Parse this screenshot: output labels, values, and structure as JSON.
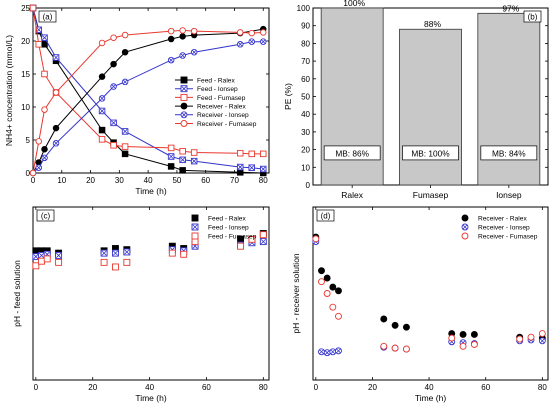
{
  "chart_data": [
    {
      "id": "a",
      "panel_label": "(a)",
      "type": "line",
      "xlabel": "Time (h)",
      "ylabel": "NH4+ concentration (mmol/L)",
      "xlim": [
        0,
        82
      ],
      "ylim": [
        0,
        25
      ],
      "xticks": [
        0,
        10,
        20,
        30,
        40,
        50,
        60,
        70,
        80
      ],
      "yticks": [
        0,
        5,
        10,
        15,
        20,
        25
      ],
      "legend_position": "center-right",
      "series": [
        {
          "name": "Feed - Ralex",
          "color": "#000000",
          "marker": "square-filled",
          "x": [
            0,
            2,
            4,
            8,
            24,
            28,
            32,
            48,
            52,
            72,
            80
          ],
          "y": [
            25,
            21.5,
            19.5,
            17.0,
            6.5,
            4.6,
            2.9,
            1.0,
            0.4,
            0.1,
            0.0
          ]
        },
        {
          "name": "Feed - Ionsep",
          "color": "#3333cc",
          "marker": "square-x",
          "x": [
            0,
            2,
            4,
            8,
            24,
            28,
            32,
            48,
            52,
            56,
            72,
            76,
            80
          ],
          "y": [
            25,
            21.7,
            20.5,
            17.5,
            9.4,
            7.6,
            6.3,
            2.5,
            2.0,
            1.8,
            0.9,
            0.8,
            0.6
          ]
        },
        {
          "name": "Feed - Fumasep",
          "color": "#e8382f",
          "marker": "square-open",
          "x": [
            0,
            2,
            4,
            8,
            24,
            28,
            32,
            48,
            52,
            56,
            72,
            76,
            80
          ],
          "y": [
            25,
            19.5,
            15.0,
            12.2,
            5.1,
            4.2,
            4.0,
            3.8,
            3.3,
            3.1,
            3.0,
            2.9,
            2.9
          ]
        },
        {
          "name": "Receiver - Ralex",
          "color": "#000000",
          "marker": "circle-filled",
          "x": [
            0,
            2,
            4,
            8,
            24,
            28,
            32,
            48,
            52,
            56,
            72,
            80
          ],
          "y": [
            0,
            1.6,
            3.6,
            6.8,
            14.6,
            16.5,
            18.3,
            20.3,
            20.7,
            20.9,
            21.2,
            21.8
          ]
        },
        {
          "name": "Receiver - Ionsep",
          "color": "#3333cc",
          "marker": "circle-x",
          "x": [
            0,
            2,
            4,
            8,
            24,
            28,
            32,
            48,
            52,
            56,
            72,
            76,
            80
          ],
          "y": [
            0,
            0.8,
            2.3,
            4.5,
            11.3,
            13.1,
            13.8,
            17.1,
            17.8,
            18.3,
            19.5,
            19.9,
            19.9
          ]
        },
        {
          "name": "Receiver - Fumasep",
          "color": "#e8382f",
          "marker": "circle-open",
          "x": [
            0,
            2,
            4,
            8,
            24,
            28,
            32,
            48,
            52,
            56,
            72,
            76,
            80
          ],
          "y": [
            0,
            4.8,
            9.6,
            12.2,
            19.7,
            20.5,
            20.9,
            21.5,
            21.6,
            21.5,
            21.3,
            21.2,
            21.3
          ]
        }
      ]
    },
    {
      "id": "b",
      "panel_label": "(b)",
      "type": "bar",
      "ylabel": "PE (%)",
      "ylim": [
        0,
        100
      ],
      "yticks": [
        0,
        10,
        20,
        30,
        40,
        50,
        60,
        70,
        80,
        90,
        100
      ],
      "categories": [
        "Ralex",
        "Fumasep",
        "Ionsep"
      ],
      "values": [
        100,
        88,
        97
      ],
      "value_labels": [
        "100%",
        "88%",
        "97%"
      ],
      "mb_labels": [
        "MB: 86%",
        "MB: 100%",
        "MB: 84%"
      ],
      "bar_color": "#c8c8c8"
    },
    {
      "id": "c",
      "panel_label": "(c)",
      "type": "scatter",
      "xlabel": "Time (h)",
      "ylabel": "pH - feed solution",
      "xlim": [
        -1,
        82
      ],
      "ylim": [
        3.5,
        5.0
      ],
      "xticks": [
        0,
        20,
        40,
        60,
        80
      ],
      "yticks": [],
      "legend_position": "top-right",
      "series": [
        {
          "name": "Feed - Ralex",
          "color": "#000000",
          "marker": "square-filled",
          "x": [
            0,
            2,
            4,
            8,
            24,
            28,
            32,
            48,
            52,
            56,
            72,
            80
          ],
          "y": [
            4.62,
            4.62,
            4.62,
            4.6,
            4.62,
            4.64,
            4.63,
            4.66,
            4.64,
            4.68,
            4.72,
            4.77
          ]
        },
        {
          "name": "Feed - Ionsep",
          "color": "#3333cc",
          "marker": "square-x",
          "x": [
            0,
            2,
            4,
            8,
            24,
            28,
            32,
            48,
            52,
            56,
            72,
            76,
            80
          ],
          "y": [
            4.57,
            4.58,
            4.59,
            4.58,
            4.6,
            4.6,
            4.61,
            4.63,
            4.62,
            4.66,
            4.67,
            4.69,
            4.7
          ]
        },
        {
          "name": "Feed - Fumasep",
          "color": "#e8382f",
          "marker": "square-open",
          "x": [
            0,
            2,
            4,
            8,
            24,
            28,
            32,
            48,
            52,
            56,
            72,
            76,
            80
          ],
          "y": [
            4.49,
            4.53,
            4.55,
            4.52,
            4.52,
            4.48,
            4.52,
            4.6,
            4.59,
            4.7,
            4.66,
            4.72,
            4.76
          ]
        }
      ]
    },
    {
      "id": "d",
      "panel_label": "(d)",
      "type": "scatter",
      "xlabel": "Time (h)",
      "ylabel": "pH - receiver solution",
      "xlim": [
        -1,
        82
      ],
      "ylim": [
        3.3,
        5.2
      ],
      "xticks": [
        0,
        20,
        40,
        60,
        80
      ],
      "yticks": [],
      "legend_position": "top-right",
      "series": [
        {
          "name": "Receiver - Ralex",
          "color": "#000000",
          "marker": "circle-filled",
          "x": [
            0,
            2,
            4,
            6,
            8,
            24,
            28,
            32,
            48,
            52,
            56,
            72,
            80
          ],
          "y": [
            4.87,
            4.5,
            4.42,
            4.32,
            4.28,
            3.97,
            3.9,
            3.88,
            3.81,
            3.8,
            3.8,
            3.77,
            3.76
          ]
        },
        {
          "name": "Receiver - Ionsep",
          "color": "#3333cc",
          "marker": "circle-x",
          "x": [
            0,
            2,
            4,
            6,
            8,
            24,
            28,
            32,
            48,
            52,
            56,
            72,
            76,
            80
          ],
          "y": [
            4.82,
            3.61,
            3.6,
            3.61,
            3.62,
            3.66,
            3.65,
            3.64,
            3.72,
            3.71,
            3.7,
            3.73,
            3.74,
            3.73
          ]
        },
        {
          "name": "Receiver - Fumasep",
          "color": "#e8382f",
          "marker": "circle-open",
          "x": [
            0,
            2,
            4,
            6,
            8,
            24,
            28,
            32,
            48,
            52,
            56,
            72,
            76,
            80
          ],
          "y": [
            4.85,
            4.38,
            4.25,
            4.1,
            4.0,
            3.67,
            3.65,
            3.64,
            3.76,
            3.67,
            3.69,
            3.75,
            3.77,
            3.81
          ]
        }
      ]
    }
  ]
}
